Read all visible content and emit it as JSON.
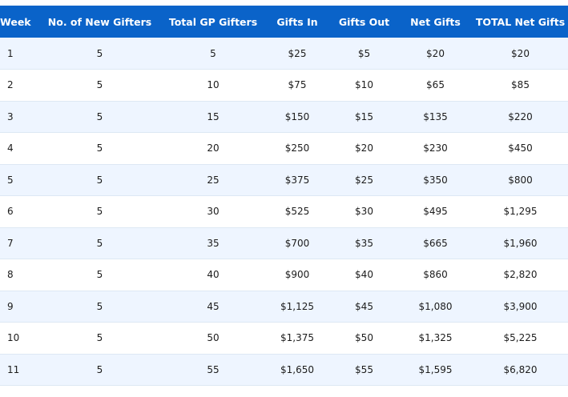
{
  "table": {
    "headers": [
      "Week",
      "No. of New Gifters",
      "Total GP Gifters",
      "Gifts In",
      "Gifts Out",
      "Net Gifts",
      "TOTAL Net Gifts"
    ],
    "rows": [
      [
        "1",
        "5",
        "5",
        "$25",
        "$5",
        "$20",
        "$20"
      ],
      [
        "2",
        "5",
        "10",
        "$75",
        "$10",
        "$65",
        "$85"
      ],
      [
        "3",
        "5",
        "15",
        "$150",
        "$15",
        "$135",
        "$220"
      ],
      [
        "4",
        "5",
        "20",
        "$250",
        "$20",
        "$230",
        "$450"
      ],
      [
        "5",
        "5",
        "25",
        "$375",
        "$25",
        "$350",
        "$800"
      ],
      [
        "6",
        "5",
        "30",
        "$525",
        "$30",
        "$495",
        "$1,295"
      ],
      [
        "7",
        "5",
        "35",
        "$700",
        "$35",
        "$665",
        "$1,960"
      ],
      [
        "8",
        "5",
        "40",
        "$900",
        "$40",
        "$860",
        "$2,820"
      ],
      [
        "9",
        "5",
        "45",
        "$1,125",
        "$45",
        "$1,080",
        "$3,900"
      ],
      [
        "10",
        "5",
        "50",
        "$1,375",
        "$50",
        "$1,325",
        "$5,225"
      ],
      [
        "11",
        "5",
        "55",
        "$1,650",
        "$55",
        "$1,595",
        "$6,820"
      ]
    ]
  },
  "colors": {
    "header_bg": "#0a63c9",
    "row_alt_bg": "#eef5ff",
    "row_bg": "#ffffff"
  }
}
